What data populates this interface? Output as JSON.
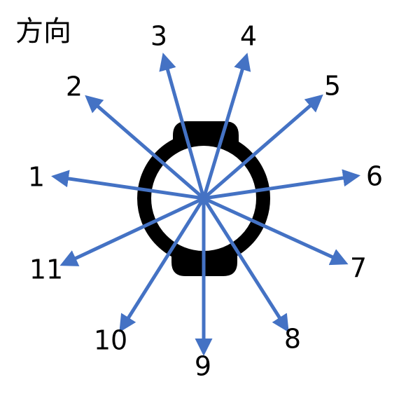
{
  "title": "方向",
  "colors": {
    "arrow": "#4472C4",
    "watch": "#000000",
    "text": "#000000"
  },
  "directions": [
    {
      "label": "1"
    },
    {
      "label": "2"
    },
    {
      "label": "3"
    },
    {
      "label": "4"
    },
    {
      "label": "5"
    },
    {
      "label": "6"
    },
    {
      "label": "7"
    },
    {
      "label": "8"
    },
    {
      "label": "9"
    },
    {
      "label": "10"
    },
    {
      "label": "11"
    }
  ]
}
